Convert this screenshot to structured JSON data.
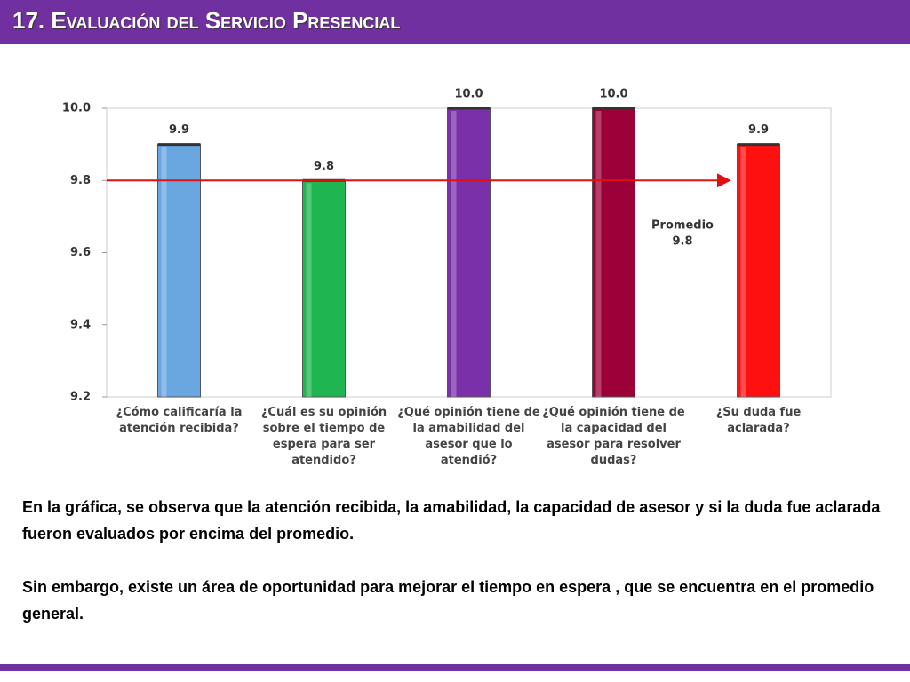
{
  "header": {
    "title": "17. Evaluación del Servicio Presencial"
  },
  "chart_data": {
    "type": "bar",
    "categories": [
      "¿Cómo calificaría la atención recibida?",
      "¿Cuál es su opinión sobre el tiempo de espera para ser atendido?",
      "¿Qué opinión tiene de la amabilidad del asesor que lo atendió?",
      "¿Qué opinión tiene de la capacidad del asesor para resolver dudas?",
      "¿Su duda fue aclarada?"
    ],
    "values": [
      9.9,
      9.8,
      10.0,
      10.0,
      9.9
    ],
    "value_labels": [
      "9.9",
      "9.8",
      "10.0",
      "10.0",
      "9.9"
    ],
    "colors": [
      "#6aa6e0",
      "#1fb550",
      "#7a30a8",
      "#9b0038",
      "#ff1010"
    ],
    "ylim": [
      9.2,
      10.0
    ],
    "yticks": [
      9.2,
      9.4,
      9.6,
      9.8,
      {
        "value": 10.0,
        "label": "10.0"
      }
    ],
    "average": {
      "label": "Promedio",
      "value": 9.8,
      "color": "#e01010"
    }
  },
  "text": [
    "En la gráfica, se observa que la atención recibida, la amabilidad, la capacidad de asesor y si la duda fue aclarada  fueron evaluados por encima del promedio.",
    "Sin embargo, existe un área de oportunidad para mejorar el tiempo en espera , que se encuentra en el promedio general."
  ]
}
